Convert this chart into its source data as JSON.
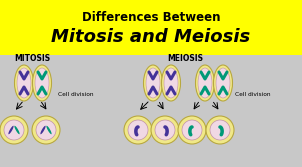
{
  "title_line1": "Differences Between",
  "title_line2": "Mitosis and Meiosis",
  "title_bg": "#ffff00",
  "body_bg": "#c8c8c8",
  "label_mitosis": "MITOSIS",
  "label_meiosis": "MEIOSIS",
  "cell_division_text": "Cell division",
  "outer_cell_color": "#f0e888",
  "inner_cell_color": "#f0d8e4",
  "chr_purple": "#443399",
  "chr_teal": "#009977",
  "cell_edge": "#b8a840",
  "inner_edge": "#c090a8"
}
